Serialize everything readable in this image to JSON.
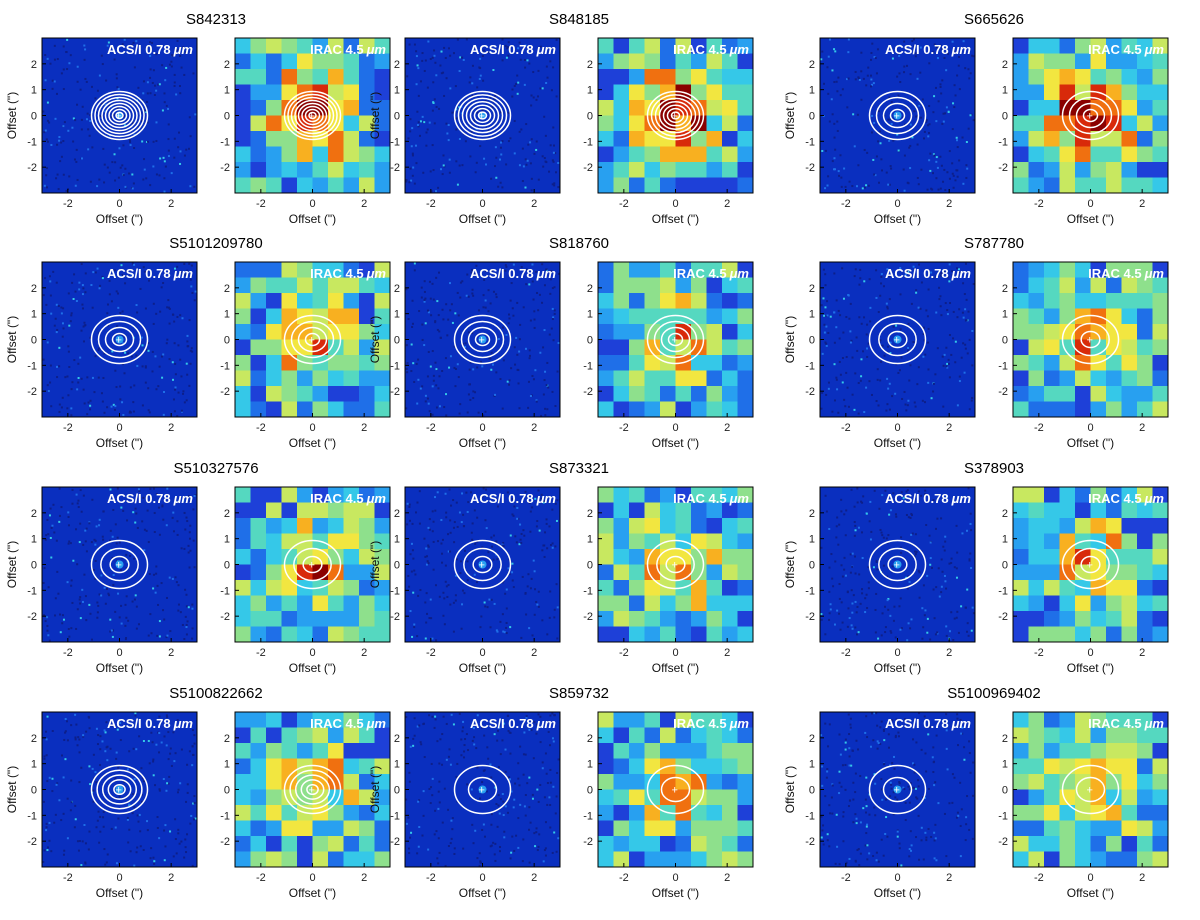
{
  "figure": {
    "axis_xlabel": "Offset (\")",
    "axis_ylabel": "Offset (\")",
    "x_ticks": [
      "-2",
      "0",
      "2"
    ],
    "y_ticks": [
      "2",
      "1",
      "0",
      "-1",
      "-2"
    ],
    "band_left": "ACS/I 0.78",
    "band_left_unit": "μm",
    "band_right": "IRAC 4.5",
    "band_right_unit": "μm",
    "colors": {
      "optical_background": "#0a2fbf",
      "irac_low": "#1e66e6",
      "irac_high": "#7a0000",
      "contour": "#ffffff",
      "marker_red": "#e02020"
    }
  },
  "panels": [
    {
      "name": "S842313"
    },
    {
      "name": "S848185"
    },
    {
      "name": "S665626"
    },
    {
      "name": "S5101209780"
    },
    {
      "name": "S818760"
    },
    {
      "name": "S787780"
    },
    {
      "name": "S510327576"
    },
    {
      "name": "S873321"
    },
    {
      "name": "S378903"
    },
    {
      "name": "S5100822662"
    },
    {
      "name": "S859732"
    },
    {
      "name": "S5100969402"
    }
  ]
}
